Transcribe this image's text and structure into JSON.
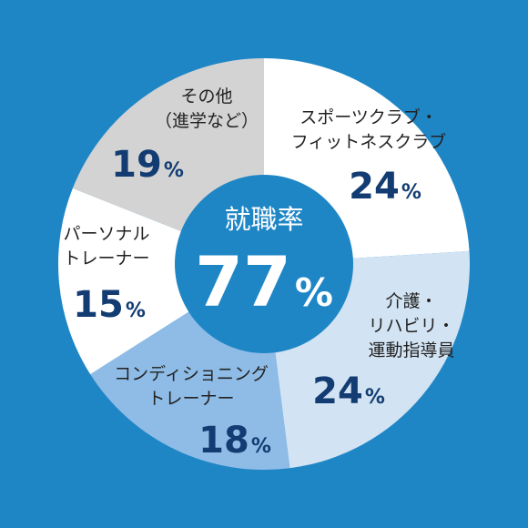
{
  "chart_data": {
    "type": "pie",
    "center": {
      "title": "就職率",
      "value": "77",
      "unit": "%"
    },
    "slices": [
      {
        "label_lines": [
          "スポーツクラブ・",
          "フィットネスクラブ"
        ],
        "value": 24,
        "color": "#ffffff"
      },
      {
        "label_lines": [
          "介護・",
          "リハビリ・",
          "運動指導員"
        ],
        "value": 24,
        "color": "#d2e3f3"
      },
      {
        "label_lines": [
          "コンディショニング",
          "トレーナー"
        ],
        "value": 18,
        "color": "#8ebce6"
      },
      {
        "label_lines": [
          "パーソナル",
          "トレーナー"
        ],
        "value": 15,
        "color": "#ffffff"
      },
      {
        "label_lines": [
          "その他",
          "（進学など）"
        ],
        "value": 19,
        "color": "#d3d3d3"
      }
    ],
    "unit": "%"
  },
  "colors": {
    "background": "#1f86c6",
    "center_fill": "#1f86c6",
    "value_text": "#123c72"
  }
}
